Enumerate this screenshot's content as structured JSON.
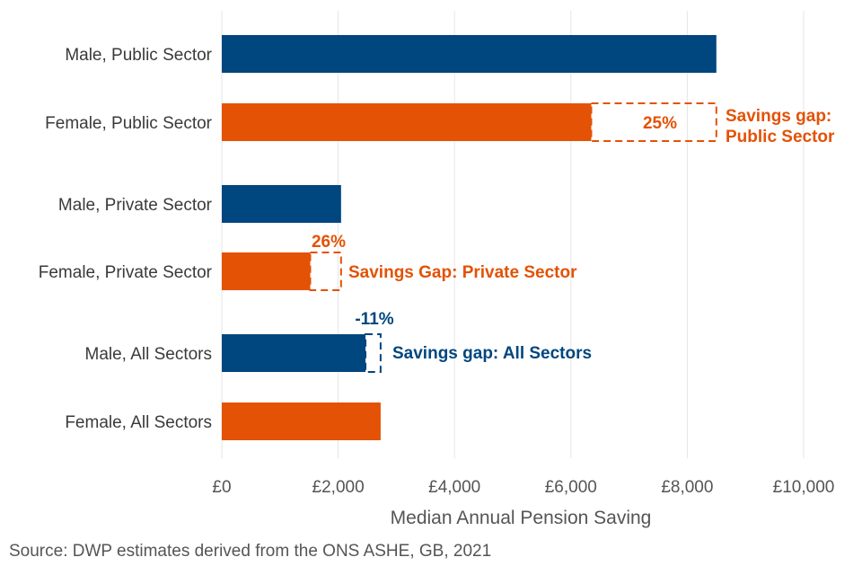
{
  "colors": {
    "male": "#00467f",
    "female": "#e35205",
    "grid": "#e6e6e6",
    "text": "#3a3a3a"
  },
  "chart_data": {
    "type": "bar",
    "orientation": "horizontal",
    "xlabel": "Median Annual Pension Saving",
    "ylabel": "",
    "xlim": [
      0,
      10000
    ],
    "x_ticks": [
      0,
      2000,
      4000,
      6000,
      8000,
      10000
    ],
    "x_tick_labels": [
      "£0",
      "£2,000",
      "£4,000",
      "£6,000",
      "£8,000",
      "£10,000"
    ],
    "grid": "vertical",
    "categories": [
      "Male, Public Sector",
      "Female, Public Sector",
      "Male, Private Sector",
      "Female, Private Sector",
      "Male, All Sectors",
      "Female, All Sectors"
    ],
    "values": [
      8500,
      6350,
      2050,
      1520,
      2470,
      2730
    ],
    "series_colors": [
      "male",
      "female",
      "male",
      "female",
      "male",
      "female"
    ],
    "annotations": [
      {
        "bar_index": 1,
        "gap_to": 8500,
        "color": "female",
        "percent": "25%",
        "label_lines": [
          "Savings gap:",
          "Public Sector"
        ]
      },
      {
        "bar_index": 3,
        "gap_to": 2050,
        "color": "female",
        "percent": "26%",
        "label_lines": [
          "Savings Gap: Private Sector"
        ]
      },
      {
        "bar_index": 4,
        "gap_to": 2730,
        "color": "male",
        "percent": "-11%",
        "label_lines": [
          "Savings gap: All Sectors"
        ]
      }
    ]
  },
  "source": "Source: DWP estimates derived from the ONS ASHE, GB, 2021"
}
